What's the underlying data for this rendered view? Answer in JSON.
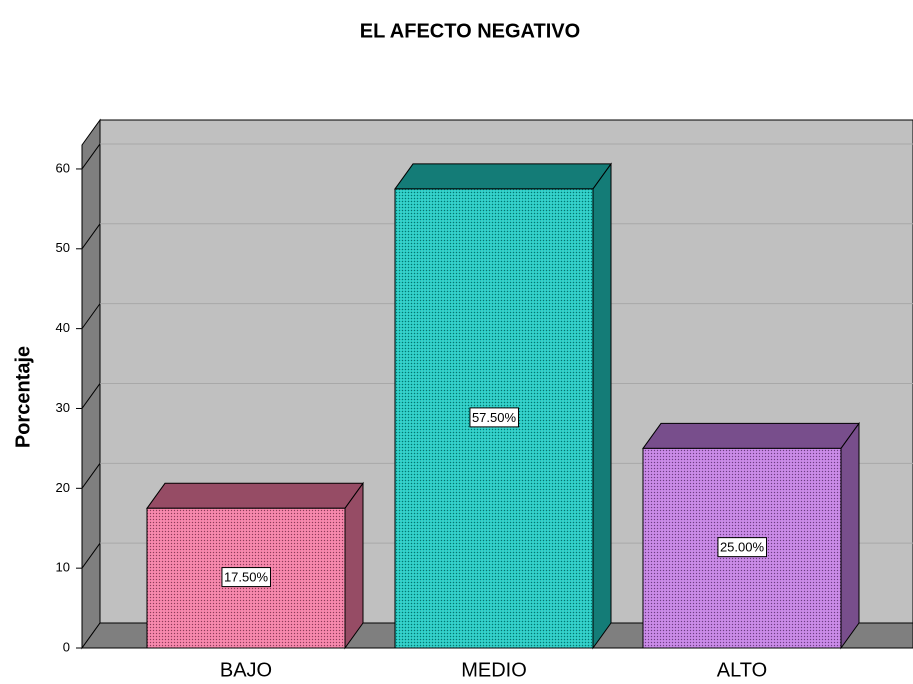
{
  "chart_data": {
    "type": "bar3d",
    "title": "EL AFECTO NEGATIVO",
    "y_label": "Porcentaje",
    "categories": [
      "BAJO",
      "MEDIO",
      "ALTO"
    ],
    "values": [
      17.5,
      57.5,
      25
    ],
    "value_labels": [
      "17.50%",
      "57.50%",
      "25.00%"
    ],
    "colors": [
      "#f27ba3",
      "#20c8c0",
      "#c27ee2"
    ],
    "ylim": [
      0,
      63
    ],
    "yticks": [
      0,
      10,
      20,
      30,
      40,
      50,
      60
    ],
    "grid": true
  }
}
